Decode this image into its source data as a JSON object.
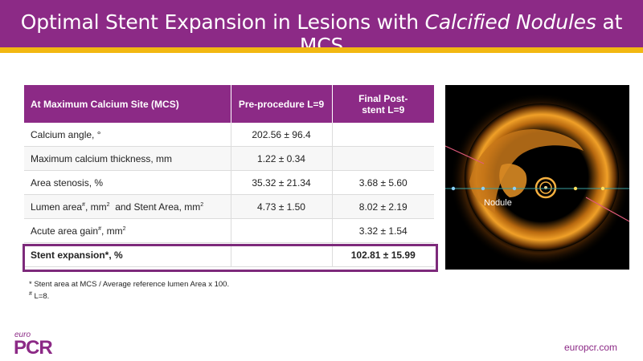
{
  "title": {
    "prefix": "Optimal Stent Expansion in Lesions with ",
    "italic": "Calcified Nodules",
    "suffix": " at MCS"
  },
  "table": {
    "headers": [
      "At Maximum Calcium Site (MCS)",
      "Pre-procedure L=9",
      "Final Post-stent L=9"
    ],
    "rows": [
      {
        "label": "Calcium angle, °",
        "pre": "202.56 ± 96.4",
        "post": ""
      },
      {
        "label": "Maximum calcium thickness, mm",
        "pre": "1.22 ± 0.34",
        "post": ""
      },
      {
        "label": "Area stenosis, %",
        "pre": "35.32 ± 21.34",
        "post": "3.68 ± 5.60"
      },
      {
        "label_a": "Lumen area",
        "label_a_sup": "#",
        "label_b": ", mm",
        "label_b_sup": "2",
        "label_c": "  and Stent Area, mm",
        "label_c_sup": "2",
        "pre": "4.73 ± 1.50",
        "post": "8.02 ± 2.19"
      },
      {
        "label_a": "Acute area gain",
        "label_a_sup": "#",
        "label_b": ", mm",
        "label_b_sup": "2",
        "pre": "",
        "post": "3.32 ± 1.54"
      },
      {
        "label": "Stent expansion*, %",
        "pre": "",
        "post": "102.81 ± 15.99"
      }
    ]
  },
  "image": {
    "label": "Nodule"
  },
  "footnotes": {
    "line1": "* Stent area at MCS / Average reference lumen Area x 100.",
    "line2_sup": "#",
    "line2": " L=8."
  },
  "logo": {
    "euro": "euro",
    "pcr": "PCR"
  },
  "website": "europcr.com",
  "colors": {
    "purple": "#8c2a86",
    "gold": "#f2b811"
  }
}
